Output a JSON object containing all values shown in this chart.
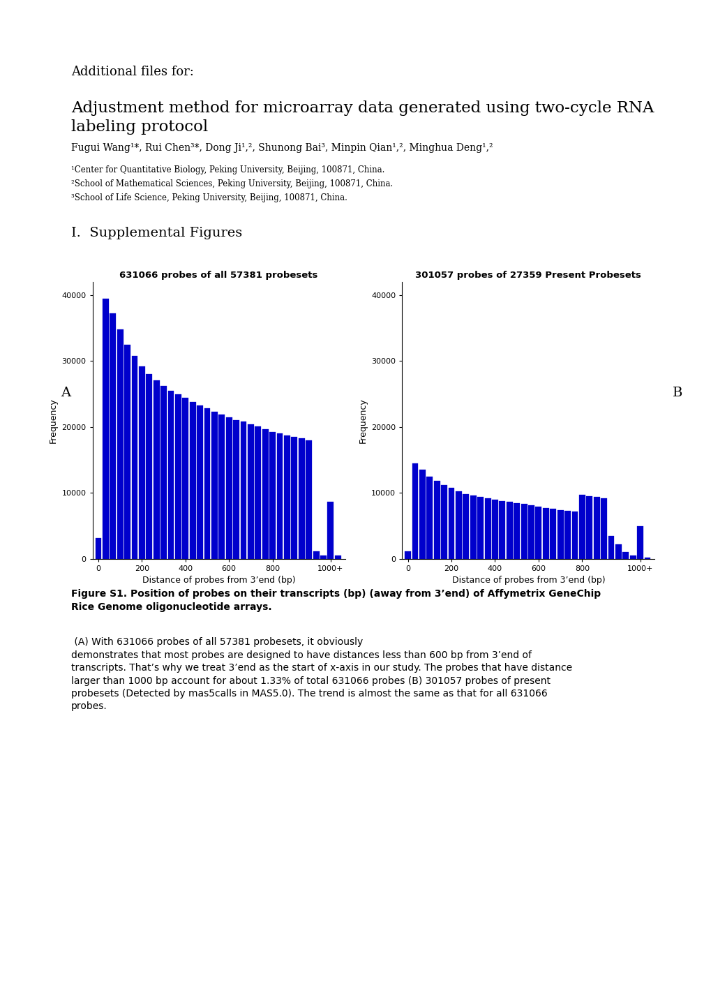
{
  "page_title_line1": "Additional files for:",
  "paper_title": "Adjustment method for microarray data generated using two-cycle RNA\nlabeling protocol",
  "authors": "Fugui Wang¹*, Rui Chen³*, Dong Ji¹,², Shunong Bai³, Minpin Qian¹,², Minghua Deng¹,²",
  "affil1": "¹Center for Quantitative Biology, Peking University, Beijing, 100871, China.",
  "affil2": "²School of Mathematical Sciences, Peking University, Beijing, 100871, China.",
  "affil3": "³School of Life Science, Peking University, Beijing, 100871, China.",
  "section_title": "I.  Supplemental Figures",
  "plot_A_title": "631066 probes of all 57381 probesets",
  "plot_B_title": "301057 probes of 27359 Present Probesets",
  "xlabel": "Distance of probes from 3’end (bp)",
  "ylabel": "Frequency",
  "bar_color": "#0000CC",
  "ylim": [
    0,
    42000
  ],
  "yticks": [
    0,
    10000,
    20000,
    30000,
    40000
  ],
  "xtick_labels": [
    "0",
    "200",
    "400",
    "600",
    "800",
    "1000+"
  ],
  "caption_bold": "Figure S1. Position of probes on their transcripts (bp) (away from 3’end) of Affymetrix GeneChip\nRice Genome oligonucleotide arrays.",
  "caption_normal": " (A) With 631066 probes of all 57381 probesets, it obviously\ndemonstrates that most probes are designed to have distances less than 600 bp from 3’end of\ntranscripts. That’s why we treat 3’end as the start of x-axis in our study. The probes that have distance\nlarger than 1000 bp account for about 1.33% of total 631066 probes (B) 301057 probes of present\nprobesets (Detected by mas5calls in MAS5.0). The trend is almost the same as that for all 631066\nprobes.",
  "hist_A": [
    3200,
    39500,
    37200,
    34800,
    32500,
    30800,
    29200,
    28000,
    27100,
    26200,
    25500,
    25000,
    24400,
    23800,
    23300,
    22800,
    22300,
    21900,
    21500,
    21100,
    20800,
    20400,
    20100,
    19700,
    19300,
    19000,
    18700,
    18500,
    18300,
    18000,
    1200,
    500,
    8700,
    500
  ],
  "hist_B": [
    1200,
    14500,
    13500,
    12500,
    11800,
    11200,
    10800,
    10200,
    9800,
    9600,
    9400,
    9200,
    9000,
    8800,
    8700,
    8500,
    8300,
    8100,
    7900,
    7700,
    7600,
    7400,
    7300,
    7200,
    9700,
    9500,
    9400,
    9200,
    3500,
    2200,
    1000,
    500,
    5000,
    200
  ],
  "background_color": "#ffffff"
}
